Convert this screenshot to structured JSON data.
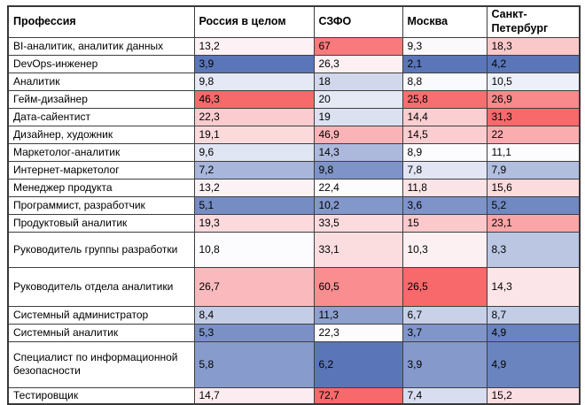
{
  "palette": {
    "heat_min_blue": "#5A76B8",
    "heat_mid_white": "#FCFCFF",
    "heat_max_red": "#F8696B",
    "border": "#3E3E3E",
    "header_bg": "#FFFFFF",
    "text": "#000000"
  },
  "table": {
    "header": [
      "Профессия",
      "Россия в целом",
      "СЗФО",
      "Москва",
      "Санкт-Петербург"
    ],
    "rows": [
      {
        "profession": "BI-аналитик, аналитик данных",
        "values": [
          "13,2",
          "67",
          "9,3",
          "18,3"
        ]
      },
      {
        "profession": "DevOps-инженер",
        "values": [
          "3,9",
          "26,3",
          "2,1",
          "4,2"
        ]
      },
      {
        "profession": "Аналитик",
        "values": [
          "9,8",
          "18",
          "8,8",
          "10,5"
        ]
      },
      {
        "profession": "Гейм-дизайнер",
        "values": [
          "46,3",
          "20",
          "25,8",
          "26,9"
        ]
      },
      {
        "profession": "Дата-сайентист",
        "values": [
          "22,3",
          "19",
          "14,4",
          "31,3"
        ]
      },
      {
        "profession": "Дизайнер, художник",
        "values": [
          "19,1",
          "46,9",
          "14,5",
          "22"
        ]
      },
      {
        "profession": "Маркетолог-аналитик",
        "values": [
          "9,6",
          "14,3",
          "8,9",
          "11,1"
        ]
      },
      {
        "profession": "Интернет-маркетолог",
        "values": [
          "7,2",
          "9,8",
          "7,8",
          "7,9"
        ]
      },
      {
        "profession": "Менеджер продукта",
        "values": [
          "13,2",
          "22,4",
          "11,8",
          "15,6"
        ]
      },
      {
        "profession": "Программист, разработчик",
        "values": [
          "5,1",
          "10,2",
          "3,6",
          "5,2"
        ]
      },
      {
        "profession": "Продуктовый аналитик",
        "values": [
          "19,3",
          "33,5",
          "15",
          "23,1"
        ]
      },
      {
        "profession": "Руководитель группы разработки",
        "values": [
          "10,8",
          "33,1",
          "10,3",
          "8,3"
        ]
      },
      {
        "profession": "Руководитель отдела аналитики",
        "values": [
          "26,7",
          "60,5",
          "26,5",
          "14,3"
        ]
      },
      {
        "profession": "Системный администратор",
        "values": [
          "8,4",
          "11,3",
          "6,7",
          "8,7"
        ]
      },
      {
        "profession": "Системный аналитик",
        "values": [
          "5,3",
          "22,3",
          "3,7",
          "4,9"
        ]
      },
      {
        "profession": "Специалист по информационной безопасности",
        "values": [
          "5,8",
          "6,2",
          "3,9",
          "4,9"
        ]
      },
      {
        "profession": "Тестировщик",
        "values": [
          "14,7",
          "72,7",
          "7,4",
          "15,2"
        ]
      }
    ]
  },
  "chart_data": {
    "type": "heatmap",
    "title": "",
    "columns": [
      "Россия в целом",
      "СЗФО",
      "Москва",
      "Санкт-Петербург"
    ],
    "rows": [
      "BI-аналитик, аналитик данных",
      "DevOps-инженер",
      "Аналитик",
      "Гейм-дизайнер",
      "Дата-сайентист",
      "Дизайнер, художник",
      "Маркетолог-аналитик",
      "Интернет-маркетолог",
      "Менеджер продукта",
      "Программист, разработчик",
      "Продуктовый аналитик",
      "Руководитель группы разработки",
      "Руководитель отдела аналитики",
      "Системный администратор",
      "Системный аналитик",
      "Специалист по информационной безопасности",
      "Тестировщик"
    ],
    "values": [
      [
        13.2,
        67.0,
        9.3,
        18.3
      ],
      [
        3.9,
        26.3,
        2.1,
        4.2
      ],
      [
        9.8,
        18.0,
        8.8,
        10.5
      ],
      [
        46.3,
        20.0,
        25.8,
        26.9
      ],
      [
        22.3,
        19.0,
        14.4,
        31.3
      ],
      [
        19.1,
        46.9,
        14.5,
        22.0
      ],
      [
        9.6,
        14.3,
        8.9,
        11.1
      ],
      [
        7.2,
        9.8,
        7.8,
        7.9
      ],
      [
        13.2,
        22.4,
        11.8,
        15.6
      ],
      [
        5.1,
        10.2,
        3.6,
        5.2
      ],
      [
        19.3,
        33.5,
        15.0,
        23.1
      ],
      [
        10.8,
        33.1,
        10.3,
        8.3
      ],
      [
        26.7,
        60.5,
        26.5,
        14.3
      ],
      [
        8.4,
        11.3,
        6.7,
        8.7
      ],
      [
        5.3,
        22.3,
        3.7,
        4.9
      ],
      [
        5.8,
        6.2,
        3.9,
        4.9
      ],
      [
        14.7,
        72.7,
        7.4,
        15.2
      ]
    ],
    "color_scale": {
      "kind": "diverging-3-color-per-column",
      "min_color": "#5A76B8",
      "mid_color": "#FCFCFF",
      "max_color": "#F8696B",
      "midpoint": "column median",
      "legend": "off",
      "grid": "on"
    }
  }
}
